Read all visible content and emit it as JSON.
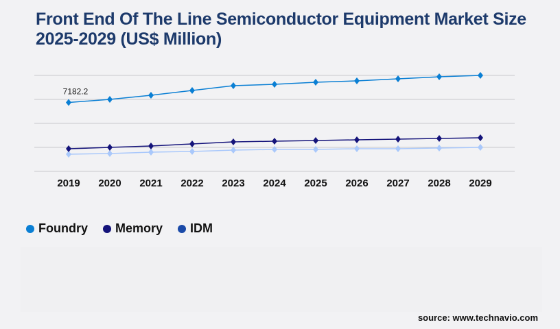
{
  "title": "Front End Of The Line Semiconductor Equipment Market Size 2025-2029 (US$ Million)",
  "source": "source: www.technavio.com",
  "chart_data": {
    "type": "line",
    "title": "Front End Of The Line Semiconductor Equipment Market Size 2025-2029 (US$ Million)",
    "categories": [
      "2019",
      "2020",
      "2021",
      "2022",
      "2023",
      "2024",
      "2025",
      "2026",
      "2027",
      "2028",
      "2029"
    ],
    "ylim": [
      0,
      10000
    ],
    "grid": true,
    "legend_position": "bottom-left",
    "annotations": [
      {
        "series": "Foundry",
        "category": "2019",
        "label": "7182.2"
      }
    ],
    "series": [
      {
        "name": "Foundry",
        "color": "#0a7fd4",
        "values": [
          7182.2,
          7500,
          7929,
          8429,
          8929,
          9071,
          9286,
          9429,
          9643,
          9857,
          10000
        ]
      },
      {
        "name": "Memory",
        "color": "#14137a",
        "values": [
          2357,
          2500,
          2643,
          2857,
          3071,
          3143,
          3214,
          3286,
          3357,
          3429,
          3500
        ]
      },
      {
        "name": "IDM",
        "color": "#a9c8fb",
        "legend_color": "#1a4aa8",
        "values": [
          1786,
          1857,
          2000,
          2071,
          2214,
          2286,
          2286,
          2357,
          2357,
          2429,
          2500
        ]
      }
    ]
  }
}
